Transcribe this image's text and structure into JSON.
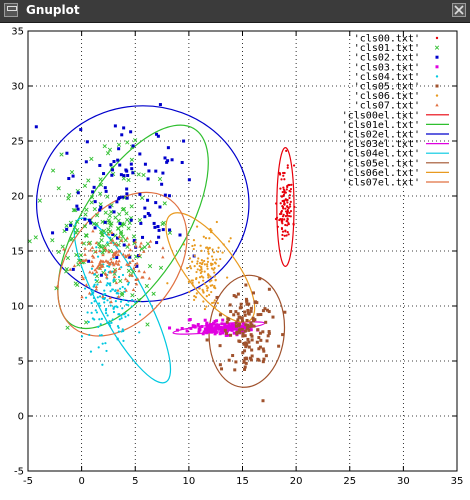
{
  "window": {
    "title": "Gnuplot",
    "menu_icon": "window-menu-icon",
    "close_icon": "close-icon"
  },
  "chart_data": {
    "type": "scatter",
    "title": "",
    "xlabel": "",
    "ylabel": "",
    "xlim": [
      -5,
      35
    ],
    "ylim": [
      -5,
      35
    ],
    "xticks": [
      -5,
      0,
      5,
      10,
      15,
      20,
      25,
      30,
      35
    ],
    "yticks": [
      -5,
      0,
      5,
      10,
      15,
      20,
      25,
      30,
      35
    ],
    "grid": true,
    "legend_position": "top-right",
    "series": [
      {
        "name": "'cls00.txt'",
        "kind": "points",
        "marker": "dot",
        "color": "#e8000b",
        "cx": 19.0,
        "cy": 19.2,
        "sx": 0.35,
        "sy": 1.8,
        "n": 110,
        "seed": 11
      },
      {
        "name": "'cls01.txt'",
        "kind": "points",
        "marker": "x",
        "color": "#2fbf2f",
        "cx": 2.3,
        "cy": 17.0,
        "sx": 2.4,
        "sy": 3.2,
        "n": 170,
        "seed": 22
      },
      {
        "name": "'cls02.txt'",
        "kind": "points",
        "marker": "square",
        "color": "#0000cc",
        "cx": 4.0,
        "cy": 20.0,
        "sx": 2.8,
        "sy": 3.2,
        "n": 110,
        "seed": 33
      },
      {
        "name": "'cls03.txt'",
        "kind": "points",
        "marker": "square",
        "color": "#e000e0",
        "cx": 13.0,
        "cy": 8.0,
        "sx": 1.6,
        "sy": 0.3,
        "n": 140,
        "seed": 44
      },
      {
        "name": "'cls04.txt'",
        "kind": "points",
        "marker": "dot",
        "color": "#00c8e0",
        "cx": 2.5,
        "cy": 10.5,
        "sx": 1.2,
        "sy": 2.2,
        "n": 150,
        "seed": 55
      },
      {
        "name": "'cls05.txt'",
        "kind": "points",
        "marker": "square",
        "color": "#a0522d",
        "cx": 15.5,
        "cy": 7.5,
        "sx": 1.2,
        "sy": 1.9,
        "n": 140,
        "seed": 66
      },
      {
        "name": "'cls06.txt'",
        "kind": "points",
        "marker": "dot",
        "color": "#e89a20",
        "cx": 11.5,
        "cy": 13.2,
        "sx": 1.0,
        "sy": 1.8,
        "n": 130,
        "seed": 77
      },
      {
        "name": "'cls07.txt'",
        "kind": "points",
        "marker": "triangle",
        "color": "#e07040",
        "cx": 3.0,
        "cy": 13.8,
        "sx": 1.6,
        "sy": 1.4,
        "n": 140,
        "seed": 88
      },
      {
        "name": "'cls00el.txt'",
        "kind": "ellipse",
        "color": "#e8000b",
        "cx": 19.0,
        "cy": 19.0,
        "rx": 0.8,
        "ry": 5.4,
        "angle": 0
      },
      {
        "name": "'cls01el.txt'",
        "kind": "ellipse",
        "color": "#2fbf2f",
        "cx": 4.8,
        "cy": 17.2,
        "rx": 4.8,
        "ry": 10.5,
        "angle": 32
      },
      {
        "name": "'cls02el.txt'",
        "kind": "ellipse",
        "color": "#0000cc",
        "cx": 5.7,
        "cy": 19.3,
        "rx": 9.9,
        "ry": 8.9,
        "angle": 0
      },
      {
        "name": "'cls03el.txt'",
        "kind": "ellipse",
        "color": "#e000e0",
        "cx": 12.8,
        "cy": 8.0,
        "rx": 4.3,
        "ry": 0.35,
        "angle": -6
      },
      {
        "name": "'cls04el.txt'",
        "kind": "ellipse",
        "color": "#00c8e0",
        "cx": 3.8,
        "cy": 10.5,
        "rx": 2.2,
        "ry": 8.4,
        "angle": -28
      },
      {
        "name": "'cls05el.txt'",
        "kind": "ellipse",
        "color": "#a0522d",
        "cx": 15.4,
        "cy": 7.7,
        "rx": 3.5,
        "ry": 5.1,
        "angle": 5
      },
      {
        "name": "'cls06el.txt'",
        "kind": "ellipse",
        "color": "#e89a20",
        "cx": 12.0,
        "cy": 13.5,
        "rx": 2.3,
        "ry": 6.0,
        "angle": -37
      },
      {
        "name": "'cls07el.txt'",
        "kind": "ellipse",
        "color": "#e07040",
        "cx": 3.8,
        "cy": 13.8,
        "rx": 5.0,
        "ry": 7.3,
        "angle": 37
      }
    ]
  }
}
